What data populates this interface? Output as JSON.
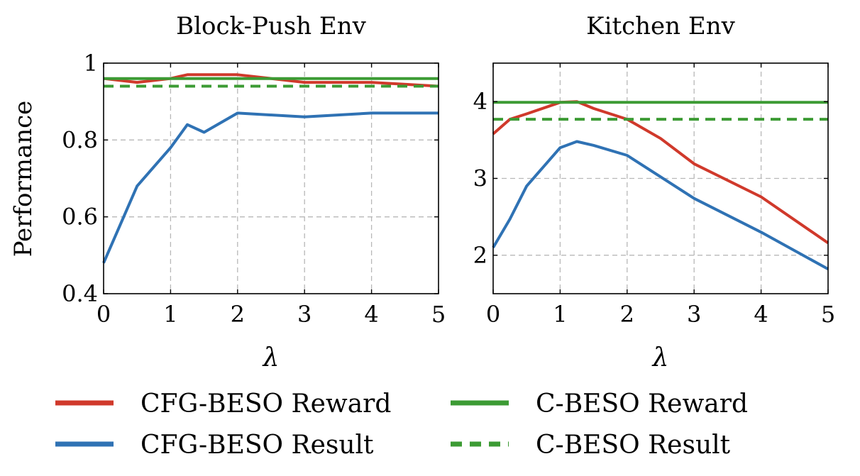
{
  "chart_data": [
    {
      "type": "line",
      "title": "Block-Push Env",
      "xlabel": "λ",
      "ylabel": "Performance",
      "xlim": [
        0,
        5
      ],
      "ylim": [
        0.4,
        1.0
      ],
      "xticks": [
        0,
        1,
        2,
        3,
        4,
        5
      ],
      "xtick_labels": [
        "0",
        "1",
        "2",
        "3",
        "4",
        "5"
      ],
      "yticks": [
        0.4,
        0.6,
        0.8,
        1.0
      ],
      "ytick_labels": [
        "0.4",
        "0.6",
        "0.8",
        "1"
      ],
      "grid": true,
      "series": [
        {
          "name": "CFG-BESO Reward",
          "color": "#d0392b",
          "dash": "solid",
          "x": [
            0,
            0.5,
            1,
            1.25,
            1.5,
            2,
            3,
            4,
            5
          ],
          "y": [
            0.96,
            0.95,
            0.96,
            0.97,
            0.97,
            0.97,
            0.95,
            0.95,
            0.94
          ]
        },
        {
          "name": "CFG-BESO Result",
          "color": "#2f72b4",
          "dash": "solid",
          "x": [
            0,
            0.5,
            1,
            1.25,
            1.5,
            2,
            3,
            4,
            5
          ],
          "y": [
            0.48,
            0.68,
            0.78,
            0.84,
            0.82,
            0.87,
            0.86,
            0.87,
            0.87
          ]
        },
        {
          "name": "C-BESO Reward",
          "color": "#3c9b34",
          "dash": "solid",
          "x": [
            0,
            5
          ],
          "y": [
            0.96,
            0.96
          ]
        },
        {
          "name": "C-BESO Result",
          "color": "#3c9b34",
          "dash": "dashed",
          "x": [
            0,
            5
          ],
          "y": [
            0.94,
            0.94
          ]
        }
      ]
    },
    {
      "type": "line",
      "title": "Kitchen Env",
      "xlabel": "λ",
      "ylabel": "",
      "xlim": [
        0,
        5
      ],
      "ylim": [
        1.5,
        4.5
      ],
      "xticks": [
        0,
        1,
        2,
        3,
        4,
        5
      ],
      "xtick_labels": [
        "0",
        "1",
        "2",
        "3",
        "4",
        "5"
      ],
      "yticks": [
        2,
        3,
        4
      ],
      "ytick_labels": [
        "2",
        "3",
        "4"
      ],
      "grid": true,
      "series": [
        {
          "name": "CFG-BESO Reward",
          "color": "#d0392b",
          "dash": "solid",
          "x": [
            0,
            0.25,
            0.5,
            1,
            1.25,
            1.5,
            2,
            2.5,
            3,
            4,
            5
          ],
          "y": [
            3.58,
            3.77,
            3.84,
            3.99,
            4.0,
            3.91,
            3.77,
            3.52,
            3.19,
            2.76,
            2.16
          ]
        },
        {
          "name": "CFG-BESO Result",
          "color": "#2f72b4",
          "dash": "solid",
          "x": [
            0,
            0.25,
            0.5,
            1,
            1.25,
            1.5,
            2,
            2.5,
            3,
            4,
            5
          ],
          "y": [
            2.1,
            2.47,
            2.9,
            3.4,
            3.48,
            3.43,
            3.3,
            3.02,
            2.74,
            2.3,
            1.82
          ]
        },
        {
          "name": "C-BESO Reward",
          "color": "#3c9b34",
          "dash": "solid",
          "x": [
            0,
            5
          ],
          "y": [
            3.99,
            3.99
          ]
        },
        {
          "name": "C-BESO Result",
          "color": "#3c9b34",
          "dash": "dashed",
          "x": [
            0,
            5
          ],
          "y": [
            3.77,
            3.77
          ]
        }
      ]
    }
  ],
  "legend": {
    "placement": "bottom",
    "items": [
      {
        "label": "CFG-BESO Reward",
        "color": "#d0392b",
        "dash": "solid"
      },
      {
        "label": "C-BESO Reward",
        "color": "#3c9b34",
        "dash": "solid"
      },
      {
        "label": "CFG-BESO Result",
        "color": "#2f72b4",
        "dash": "solid"
      },
      {
        "label": "C-BESO Result",
        "color": "#3c9b34",
        "dash": "dashed"
      }
    ]
  }
}
